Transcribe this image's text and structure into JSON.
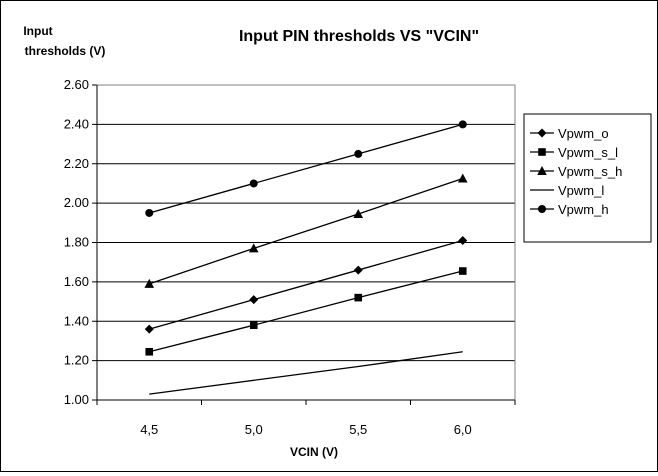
{
  "chart_data": {
    "type": "line",
    "title": "Input PIN thresholds VS \"VCIN\"",
    "ylabel_line1": "Input",
    "ylabel_line2": "thresholds (V)",
    "xlabel": "VCIN (V)",
    "categories": [
      "4,5",
      "5,0",
      "5,5",
      "6,0"
    ],
    "x": [
      4.5,
      5.0,
      5.5,
      6.0
    ],
    "ylim": [
      1.0,
      2.6
    ],
    "ytick_values": [
      1.0,
      1.2,
      1.4,
      1.6,
      1.8,
      2.0,
      2.2,
      2.4,
      2.6
    ],
    "ytick_labels": [
      "1.00",
      "1.20",
      "1.40",
      "1.60",
      "1.80",
      "2.00",
      "2.20",
      "2.40",
      "2.60"
    ],
    "grid": "horizontal",
    "legend_position": "right",
    "series": [
      {
        "name": "Vpwm_o",
        "marker": "diamond",
        "values": [
          1.36,
          1.51,
          1.66,
          1.81
        ]
      },
      {
        "name": "Vpwm_s_l",
        "marker": "square",
        "values": [
          1.245,
          1.38,
          1.52,
          1.655
        ]
      },
      {
        "name": "Vpwm_s_h",
        "marker": "triangle",
        "values": [
          1.59,
          1.77,
          1.945,
          2.125
        ]
      },
      {
        "name": "Vpwm_l",
        "marker": "none",
        "values": [
          1.03,
          1.1,
          1.17,
          1.245
        ]
      },
      {
        "name": "Vpwm_h",
        "marker": "circle",
        "values": [
          1.95,
          2.1,
          2.25,
          2.4
        ]
      }
    ]
  }
}
